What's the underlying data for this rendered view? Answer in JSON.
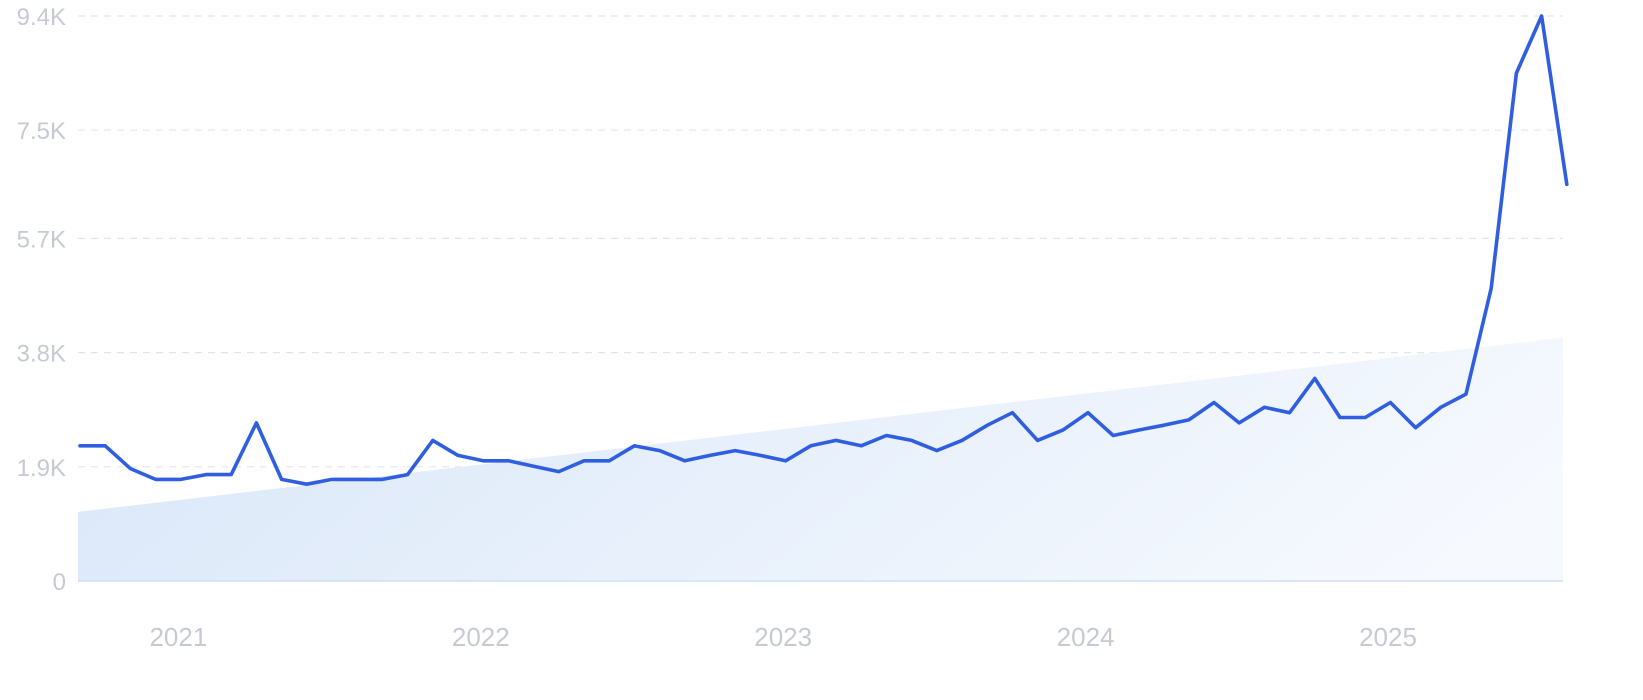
{
  "chart_data": {
    "type": "line",
    "title": "",
    "xlabel": "",
    "ylabel": "",
    "ylim": [
      0,
      9400
    ],
    "grid": true,
    "y_ticks": [
      {
        "value": 0,
        "label": "0"
      },
      {
        "value": 1900,
        "label": "1.9K"
      },
      {
        "value": 3800,
        "label": "3.8K"
      },
      {
        "value": 5700,
        "label": "5.7K"
      },
      {
        "value": 7500,
        "label": "7.5K"
      },
      {
        "value": 9400,
        "label": "9.4K"
      }
    ],
    "x_ticks": [
      {
        "value": "2021-01",
        "label": "2021"
      },
      {
        "value": "2022-01",
        "label": "2022"
      },
      {
        "value": "2023-01",
        "label": "2023"
      },
      {
        "value": "2024-01",
        "label": "2024"
      },
      {
        "value": "2025-01",
        "label": "2025"
      }
    ],
    "x": [
      "2020-11",
      "2020-12",
      "2021-01",
      "2021-02",
      "2021-03",
      "2021-04",
      "2021-05",
      "2021-06",
      "2021-07",
      "2021-08",
      "2021-09",
      "2021-10",
      "2021-11",
      "2021-12",
      "2022-01",
      "2022-02",
      "2022-03",
      "2022-04",
      "2022-05",
      "2022-06",
      "2022-07",
      "2022-08",
      "2022-09",
      "2022-10",
      "2022-11",
      "2022-12",
      "2023-01",
      "2023-02",
      "2023-03",
      "2023-04",
      "2023-05",
      "2023-06",
      "2023-07",
      "2023-08",
      "2023-09",
      "2023-10",
      "2023-11",
      "2023-12",
      "2024-01",
      "2024-02",
      "2024-03",
      "2024-04",
      "2024-05",
      "2024-06",
      "2024-07",
      "2024-08",
      "2024-09",
      "2024-10",
      "2024-11",
      "2024-12",
      "2025-01",
      "2025-02",
      "2025-03",
      "2025-04",
      "2025-05",
      "2025-06",
      "2025-07",
      "2025-08",
      "2025-09",
      "2025-10"
    ],
    "series": [
      {
        "values": [
          2250,
          2250,
          1870,
          1690,
          1690,
          1770,
          1770,
          2630,
          1690,
          1610,
          1690,
          1690,
          1690,
          1770,
          2340,
          2090,
          2000,
          2000,
          1910,
          1820,
          2000,
          2000,
          2250,
          2170,
          2000,
          2090,
          2170,
          2090,
          2000,
          2250,
          2340,
          2250,
          2420,
          2340,
          2170,
          2340,
          2590,
          2800,
          2340,
          2510,
          2800,
          2420,
          2510,
          2590,
          2680,
          2970,
          2630,
          2890,
          2800,
          3370,
          2720,
          2720,
          2970,
          2550,
          2890,
          3110,
          4870,
          8450,
          9400,
          6600
        ]
      }
    ],
    "trend": {
      "start": 1150,
      "end": 4050
    },
    "colors": {
      "line": "#2f5ee0",
      "area_start": "#dbe8f9",
      "area_end": "#f6f9fe",
      "grid": "#dfe6f3",
      "tick_text": "#c6cad3"
    }
  }
}
